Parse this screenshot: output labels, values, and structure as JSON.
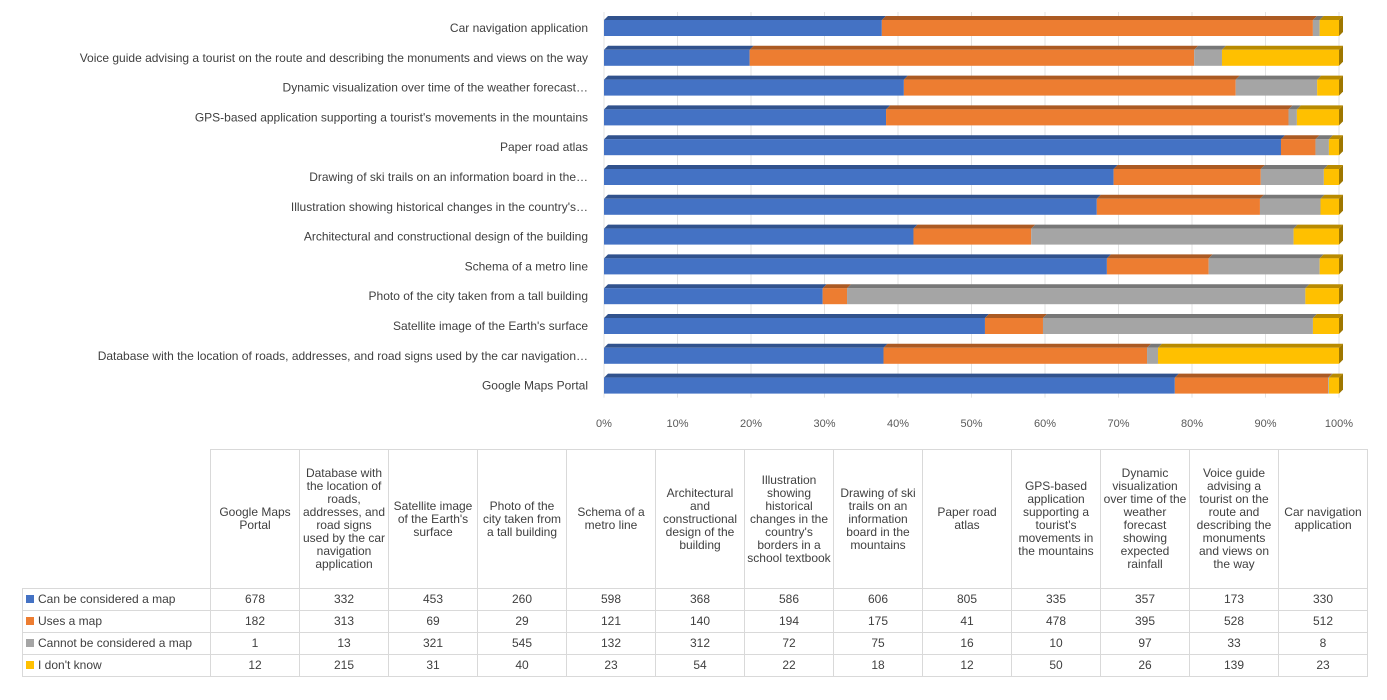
{
  "chart_data": {
    "type": "bar",
    "orientation": "horizontal",
    "stacking": "percent",
    "title": "",
    "xlabel": "",
    "ylabel": "",
    "xlim": [
      0,
      100
    ],
    "ticks": [
      "0%",
      "10%",
      "20%",
      "30%",
      "40%",
      "50%",
      "60%",
      "70%",
      "80%",
      "90%",
      "100%"
    ],
    "bar_labels": [
      "Car navigation application",
      "Voice guide advising a tourist on the route and describing the monuments and views on the way",
      "Dynamic visualization over time of the weather forecast…",
      "GPS-based application supporting a tourist's movements in the mountains",
      "Paper road atlas",
      "Drawing of ski trails on an information board in the…",
      "Illustration showing historical changes in the country's…",
      "Architectural and constructional design of the building",
      "Schema of a metro line",
      "Photo of the city taken from a tall building",
      "Satellite image of the Earth's surface",
      "Database with the location of roads, addresses, and road signs used by the car navigation…",
      "Google Maps Portal"
    ],
    "categories": [
      "Google Maps Portal",
      "Database with the location of roads, addresses, and road signs used by the car navigation application",
      "Satellite image of the Earth's surface",
      "Photo of the city taken from a tall building",
      "Schema of a metro line",
      "Architectural and constructional design of the building",
      "Illustration showing historical changes in the country's borders in a school textbook",
      "Drawing of ski trails on an information board in the mountains",
      "Paper road atlas",
      "GPS-based application supporting a tourist's movements in the mountains",
      "Dynamic visualization over time of the weather forecast showing expected rainfall",
      "Voice guide advising a tourist on the route and describing the monuments and views on the way",
      "Car navigation application"
    ],
    "series": [
      {
        "name": "Can be considered a map",
        "color": "#4472C4",
        "values": [
          678,
          332,
          453,
          260,
          598,
          368,
          586,
          606,
          805,
          335,
          357,
          173,
          330
        ]
      },
      {
        "name": "Uses a map",
        "color": "#ED7D31",
        "values": [
          182,
          313,
          69,
          29,
          121,
          140,
          194,
          175,
          41,
          478,
          395,
          528,
          512
        ]
      },
      {
        "name": "Cannot be considered a map",
        "color": "#A5A5A5",
        "values": [
          1,
          13,
          321,
          545,
          132,
          312,
          72,
          75,
          16,
          10,
          97,
          33,
          8
        ]
      },
      {
        "name": "I don't know",
        "color": "#FFC000",
        "values": [
          12,
          215,
          31,
          40,
          23,
          54,
          22,
          18,
          12,
          50,
          26,
          139,
          23
        ]
      }
    ]
  }
}
